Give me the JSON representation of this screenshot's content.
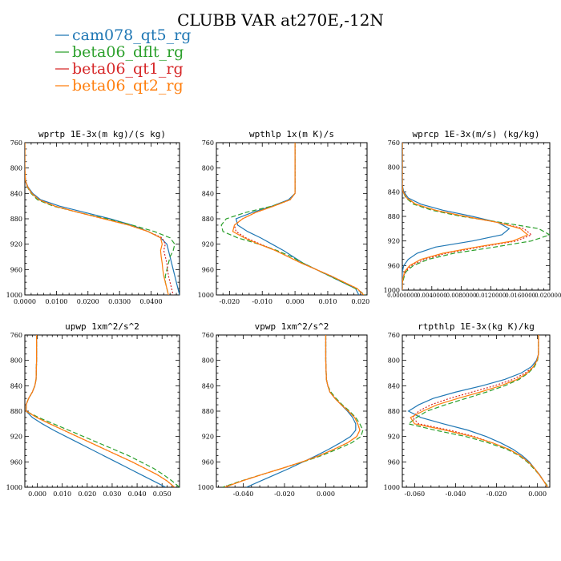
{
  "figure": {
    "title": "CLUBB VAR at270E,-12N"
  },
  "legend": [
    {
      "name": "cam078_qt5_rg",
      "color": "#1f77b4",
      "dash": ""
    },
    {
      "name": "beta06_dflt_rg",
      "color": "#2ca02c",
      "dash": "6,3"
    },
    {
      "name": "beta06_qt1_rg",
      "color": "#d62728",
      "dash": "2,2"
    },
    {
      "name": "beta06_qt2_rg",
      "color": "#ff7f0e",
      "dash": ""
    }
  ],
  "chart_data": [
    {
      "type": "line",
      "title": "wprtp  1E-3x(m kg)/(s kg)",
      "xlim": [
        0,
        0.049
      ],
      "ylim": [
        760,
        1000
      ],
      "y_inverted": true,
      "xticks": [
        0.0,
        0.01,
        0.02,
        0.03,
        0.04
      ],
      "xtick_labels": [
        "0.0000",
        "0.0100",
        "0.0200",
        "0.0300",
        "0.0400"
      ],
      "yticks": [
        760,
        800,
        840,
        880,
        920,
        960,
        1000
      ],
      "y": [
        760,
        800,
        820,
        830,
        840,
        850,
        860,
        870,
        880,
        890,
        900,
        910,
        920,
        930,
        940,
        950,
        960,
        970,
        980,
        990,
        1000
      ],
      "series": [
        {
          "name": "cam078_qt5_rg",
          "values": [
            0,
            0,
            0.0002,
            0.001,
            0.0025,
            0.005,
            0.011,
            0.019,
            0.027,
            0.034,
            0.039,
            0.043,
            0.045,
            0.0455,
            0.046,
            0.0465,
            0.047,
            0.0475,
            0.048,
            0.0485,
            0.049
          ]
        },
        {
          "name": "beta06_dflt_rg",
          "values": [
            0,
            0,
            0.0002,
            0.0008,
            0.002,
            0.004,
            0.009,
            0.017,
            0.026,
            0.034,
            0.041,
            0.046,
            0.0475,
            0.047,
            0.046,
            0.0455,
            0.045,
            0.0445,
            0.0445,
            0.045,
            0.0455
          ]
        },
        {
          "name": "beta06_qt1_rg",
          "values": [
            0,
            0,
            0.0002,
            0.0009,
            0.0022,
            0.0045,
            0.0095,
            0.017,
            0.025,
            0.033,
            0.039,
            0.0435,
            0.0445,
            0.044,
            0.0445,
            0.045,
            0.0452,
            0.0455,
            0.046,
            0.0465,
            0.047
          ]
        },
        {
          "name": "beta06_qt2_rg",
          "values": [
            0,
            0,
            0.0002,
            0.0009,
            0.0022,
            0.0045,
            0.0095,
            0.017,
            0.025,
            0.033,
            0.039,
            0.043,
            0.0435,
            0.043,
            0.0432,
            0.0435,
            0.0437,
            0.044,
            0.0445,
            0.045,
            0.0455
          ]
        }
      ]
    },
    {
      "type": "line",
      "title": "wpthlp  1x(m K)/s",
      "xlim": [
        -0.024,
        0.022
      ],
      "ylim": [
        760,
        1000
      ],
      "y_inverted": true,
      "xticks": [
        -0.02,
        -0.01,
        0.0,
        0.01,
        0.02
      ],
      "xtick_labels": [
        "-0.020",
        "-0.010",
        "0.000",
        "0.010",
        "0.020"
      ],
      "yticks": [
        760,
        800,
        840,
        880,
        920,
        960,
        1000
      ],
      "y": [
        760,
        800,
        820,
        840,
        850,
        860,
        870,
        880,
        890,
        900,
        910,
        920,
        930,
        940,
        950,
        960,
        970,
        980,
        990,
        1000
      ],
      "series": [
        {
          "name": "cam078_qt5_rg",
          "values": [
            0,
            0,
            0,
            0,
            -0.002,
            -0.007,
            -0.013,
            -0.018,
            -0.0175,
            -0.0145,
            -0.0105,
            -0.007,
            -0.0035,
            -0.0005,
            0.0025,
            0.0065,
            0.0105,
            0.0145,
            0.0185,
            0.0195
          ]
        },
        {
          "name": "beta06_dflt_rg",
          "values": [
            0,
            0,
            0,
            0,
            -0.0015,
            -0.007,
            -0.015,
            -0.021,
            -0.0225,
            -0.022,
            -0.0175,
            -0.011,
            -0.0055,
            -0.001,
            0.0025,
            0.0065,
            0.0105,
            0.0145,
            0.0185,
            0.0215
          ]
        },
        {
          "name": "beta06_qt1_rg",
          "values": [
            0,
            0,
            0,
            0,
            -0.0015,
            -0.0065,
            -0.012,
            -0.016,
            -0.0185,
            -0.018,
            -0.015,
            -0.0105,
            -0.006,
            -0.002,
            0.002,
            0.0065,
            0.011,
            0.015,
            0.019,
            0.021
          ]
        },
        {
          "name": "beta06_qt2_rg",
          "values": [
            0,
            0,
            0,
            0,
            -0.0015,
            -0.0065,
            -0.012,
            -0.016,
            -0.0185,
            -0.019,
            -0.0155,
            -0.011,
            -0.006,
            -0.002,
            0.002,
            0.0065,
            0.011,
            0.015,
            0.019,
            0.021
          ]
        }
      ]
    },
    {
      "type": "line",
      "title": "wprcp  1E-3x(m/s) (kg/kg)",
      "xlim": [
        0,
        0.02
      ],
      "ylim": [
        760,
        1000
      ],
      "y_inverted": true,
      "xticks": [
        0,
        0.004,
        0.008,
        0.012,
        0.016,
        0.02
      ],
      "xtick_labels": [
        "0.0000000",
        "0.0040000",
        "0.0080000",
        "0.0120000",
        "0.0160000",
        "0.0200000"
      ],
      "yticks": [
        760,
        800,
        840,
        880,
        920,
        960,
        1000
      ],
      "y": [
        760,
        800,
        830,
        840,
        850,
        860,
        870,
        880,
        890,
        900,
        910,
        920,
        930,
        940,
        950,
        960,
        970,
        980,
        990,
        1000
      ],
      "series": [
        {
          "name": "cam078_qt5_rg",
          "values": [
            0,
            0,
            0,
            0.0002,
            0.0008,
            0.0025,
            0.0055,
            0.0095,
            0.013,
            0.0145,
            0.0135,
            0.0095,
            0.0045,
            0.002,
            0.0008,
            0.0002,
            0,
            0,
            0,
            0
          ]
        },
        {
          "name": "beta06_dflt_rg",
          "values": [
            0,
            0,
            0,
            0.0001,
            0.0005,
            0.0015,
            0.004,
            0.008,
            0.0135,
            0.0185,
            0.02,
            0.0175,
            0.0125,
            0.007,
            0.0035,
            0.0015,
            0.0005,
            0.0002,
            0,
            0
          ]
        },
        {
          "name": "beta06_qt1_rg",
          "values": [
            0,
            0,
            0,
            0.0001,
            0.0006,
            0.0018,
            0.0045,
            0.0085,
            0.013,
            0.0165,
            0.0175,
            0.0155,
            0.0105,
            0.006,
            0.003,
            0.0012,
            0.0004,
            0.0001,
            0,
            0
          ]
        },
        {
          "name": "beta06_qt2_rg",
          "values": [
            0,
            0,
            0,
            0.0001,
            0.0006,
            0.0018,
            0.0045,
            0.0085,
            0.013,
            0.016,
            0.017,
            0.015,
            0.01,
            0.0055,
            0.0025,
            0.001,
            0.0003,
            0.0001,
            0,
            0
          ]
        }
      ]
    },
    {
      "type": "line",
      "title": "upwp  1xm^2/s^2",
      "xlim": [
        -0.005,
        0.057
      ],
      "ylim": [
        760,
        1000
      ],
      "y_inverted": true,
      "xticks": [
        0.0,
        0.01,
        0.02,
        0.03,
        0.04,
        0.05
      ],
      "xtick_labels": [
        "0.000",
        "0.010",
        "0.020",
        "0.030",
        "0.040",
        "0.050"
      ],
      "yticks": [
        760,
        800,
        840,
        880,
        920,
        960,
        1000
      ],
      "y": [
        760,
        800,
        830,
        840,
        850,
        860,
        870,
        880,
        890,
        900,
        910,
        920,
        930,
        940,
        950,
        960,
        970,
        980,
        990,
        1000
      ],
      "series": [
        {
          "name": "cam078_qt5_rg",
          "values": [
            -0.0003,
            -0.0003,
            -0.0005,
            -0.001,
            -0.002,
            -0.0035,
            -0.0045,
            -0.0045,
            -0.002,
            0.002,
            0.0065,
            0.0115,
            0.0165,
            0.0215,
            0.0265,
            0.0315,
            0.0365,
            0.0415,
            0.0465,
            0.0515
          ]
        },
        {
          "name": "beta06_dflt_rg",
          "values": [
            -0.0003,
            -0.0003,
            -0.0005,
            -0.001,
            -0.002,
            -0.0035,
            -0.0045,
            -0.0045,
            0.0005,
            0.0065,
            0.0125,
            0.0185,
            0.0245,
            0.0305,
            0.0365,
            0.0415,
            0.0465,
            0.0505,
            0.054,
            0.057
          ]
        },
        {
          "name": "beta06_qt1_rg",
          "values": [
            -0.0003,
            -0.0003,
            -0.0005,
            -0.001,
            -0.002,
            -0.0035,
            -0.0045,
            -0.0045,
            -0.0002,
            0.005,
            0.0105,
            0.016,
            0.0215,
            0.027,
            0.0325,
            0.038,
            0.043,
            0.048,
            0.052,
            0.055
          ]
        },
        {
          "name": "beta06_qt2_rg",
          "values": [
            -0.0003,
            -0.0003,
            -0.0005,
            -0.001,
            -0.002,
            -0.0035,
            -0.0045,
            -0.0045,
            -0.0002,
            0.005,
            0.0105,
            0.016,
            0.0215,
            0.027,
            0.0325,
            0.038,
            0.043,
            0.048,
            0.052,
            0.055
          ]
        }
      ]
    },
    {
      "type": "line",
      "title": "vpwp  1xm^2/s^2",
      "xlim": [
        -0.053,
        0.02
      ],
      "ylim": [
        760,
        1000
      ],
      "y_inverted": true,
      "xticks": [
        -0.04,
        -0.02,
        0.0
      ],
      "xtick_labels": [
        "-0.040",
        "-0.020",
        "0.000"
      ],
      "yticks": [
        760,
        800,
        840,
        880,
        920,
        960,
        1000
      ],
      "y": [
        760,
        800,
        830,
        840,
        850,
        860,
        870,
        880,
        890,
        900,
        910,
        920,
        930,
        940,
        950,
        960,
        970,
        980,
        990,
        1000
      ],
      "series": [
        {
          "name": "cam078_qt5_rg",
          "values": [
            0,
            0,
            0.0003,
            0.001,
            0.002,
            0.0045,
            0.0075,
            0.0105,
            0.013,
            0.0145,
            0.0145,
            0.012,
            0.007,
            0.0015,
            -0.0045,
            -0.011,
            -0.0175,
            -0.0245,
            -0.0315,
            -0.0385
          ]
        },
        {
          "name": "beta06_dflt_rg",
          "values": [
            0,
            0,
            0.0003,
            0.001,
            0.0025,
            0.005,
            0.008,
            0.0115,
            0.0145,
            0.0165,
            0.018,
            0.017,
            0.0125,
            0.0055,
            -0.002,
            -0.011,
            -0.021,
            -0.031,
            -0.041,
            -0.05
          ]
        },
        {
          "name": "beta06_qt1_rg",
          "values": [
            0,
            0,
            0.0003,
            0.001,
            0.002,
            0.0045,
            0.0075,
            0.011,
            0.014,
            0.0155,
            0.0165,
            0.015,
            0.0105,
            0.004,
            -0.003,
            -0.0115,
            -0.021,
            -0.031,
            -0.0405,
            -0.049
          ]
        },
        {
          "name": "beta06_qt2_rg",
          "values": [
            0,
            0,
            0.0003,
            0.001,
            0.002,
            0.0045,
            0.0075,
            0.011,
            0.014,
            0.0155,
            0.0165,
            0.015,
            0.0105,
            0.004,
            -0.003,
            -0.0115,
            -0.021,
            -0.031,
            -0.0405,
            -0.049
          ]
        }
      ]
    },
    {
      "type": "line",
      "title": "rtpthlp  1E-3x(kg K)/kg",
      "xlim": [
        -0.066,
        0.006
      ],
      "ylim": [
        760,
        1000
      ],
      "y_inverted": true,
      "xticks": [
        -0.06,
        -0.04,
        -0.02,
        0.0
      ],
      "xtick_labels": [
        "-0.060",
        "-0.040",
        "-0.020",
        "0.000"
      ],
      "yticks": [
        760,
        800,
        840,
        880,
        920,
        960,
        1000
      ],
      "y": [
        760,
        790,
        800,
        810,
        820,
        830,
        840,
        850,
        860,
        870,
        880,
        890,
        900,
        910,
        920,
        930,
        940,
        950,
        960,
        970,
        980,
        990,
        1000
      ],
      "series": [
        {
          "name": "cam078_qt5_rg",
          "values": [
            0.0005,
            0.0005,
            -0.0005,
            -0.003,
            -0.008,
            -0.016,
            -0.027,
            -0.04,
            -0.051,
            -0.058,
            -0.063,
            -0.057,
            -0.046,
            -0.034,
            -0.025,
            -0.018,
            -0.012,
            -0.0075,
            -0.004,
            -0.0015,
            0.001,
            0.003,
            0.005
          ]
        },
        {
          "name": "beta06_dflt_rg",
          "values": [
            0.0005,
            0.0005,
            0,
            -0.0015,
            -0.0045,
            -0.009,
            -0.016,
            -0.025,
            -0.035,
            -0.045,
            -0.054,
            -0.059,
            -0.063,
            -0.05,
            -0.035,
            -0.024,
            -0.015,
            -0.009,
            -0.005,
            -0.002,
            0.0008,
            0.003,
            0.0055
          ]
        },
        {
          "name": "beta06_qt1_rg",
          "values": [
            0.0005,
            0.0005,
            -0.0003,
            -0.002,
            -0.006,
            -0.012,
            -0.021,
            -0.032,
            -0.043,
            -0.052,
            -0.058,
            -0.061,
            -0.058,
            -0.043,
            -0.031,
            -0.022,
            -0.014,
            -0.0085,
            -0.0045,
            -0.0015,
            0.0008,
            0.003,
            0.005
          ]
        },
        {
          "name": "beta06_qt2_rg",
          "values": [
            0.0005,
            0.0005,
            -0.0002,
            -0.002,
            -0.005,
            -0.01,
            -0.018,
            -0.028,
            -0.039,
            -0.049,
            -0.056,
            -0.062,
            -0.06,
            -0.045,
            -0.032,
            -0.022,
            -0.014,
            -0.0085,
            -0.0045,
            -0.0015,
            0.0008,
            0.003,
            0.005
          ]
        }
      ]
    }
  ]
}
